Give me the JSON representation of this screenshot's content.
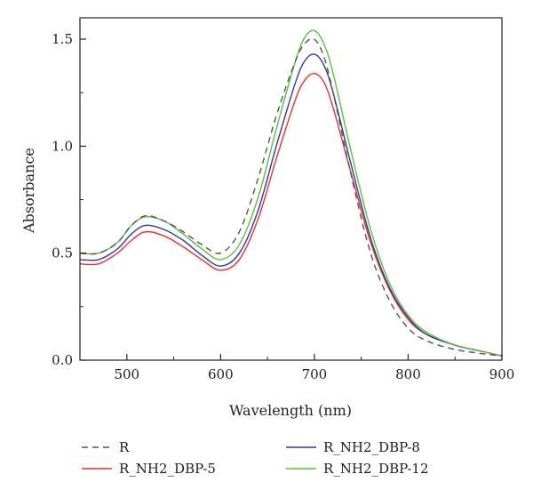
{
  "chart_data": {
    "type": "line",
    "title": "",
    "xlabel": "Wavelength (nm)",
    "ylabel": "Absorbance",
    "xlim": [
      450,
      900
    ],
    "ylim": [
      0,
      1.6
    ],
    "x_ticks": [
      500,
      600,
      700,
      800,
      900
    ],
    "y_ticks": [
      0.0,
      0.5,
      1.0,
      1.5
    ],
    "x_tick_labels": [
      "500",
      "600",
      "700",
      "800",
      "900"
    ],
    "y_tick_labels": [
      "0.0",
      "0.5",
      "1.0",
      "1.5"
    ],
    "grid": false,
    "legend_position": "bottom",
    "series": [
      {
        "name": "R",
        "color": "#555555",
        "dash": true,
        "x": [
          450,
          470,
          490,
          505,
          520,
          540,
          560,
          580,
          600,
          620,
          640,
          660,
          680,
          690,
          700,
          710,
          720,
          740,
          760,
          780,
          800,
          820,
          850,
          880,
          900
        ],
        "y": [
          0.5,
          0.5,
          0.55,
          0.63,
          0.675,
          0.65,
          0.6,
          0.54,
          0.5,
          0.6,
          0.85,
          1.15,
          1.4,
          1.48,
          1.5,
          1.42,
          1.25,
          0.85,
          0.5,
          0.28,
          0.15,
          0.09,
          0.05,
          0.03,
          0.02
        ]
      },
      {
        "name": "R_NH2_DBP-5",
        "color": "#e8312a",
        "dash": false,
        "x": [
          450,
          470,
          490,
          505,
          520,
          540,
          560,
          580,
          600,
          620,
          640,
          660,
          680,
          690,
          700,
          710,
          720,
          740,
          760,
          780,
          800,
          820,
          850,
          880,
          900
        ],
        "y": [
          0.45,
          0.45,
          0.5,
          0.56,
          0.6,
          0.58,
          0.53,
          0.47,
          0.42,
          0.47,
          0.66,
          0.95,
          1.22,
          1.31,
          1.34,
          1.3,
          1.18,
          0.86,
          0.55,
          0.33,
          0.19,
          0.12,
          0.07,
          0.04,
          0.02
        ]
      },
      {
        "name": "R_NH2_DBP-8",
        "color": "#2f3b9a",
        "dash": false,
        "x": [
          450,
          470,
          490,
          505,
          520,
          540,
          560,
          580,
          600,
          620,
          640,
          660,
          680,
          690,
          700,
          710,
          720,
          740,
          760,
          780,
          800,
          820,
          850,
          880,
          900
        ],
        "y": [
          0.47,
          0.47,
          0.52,
          0.59,
          0.63,
          0.61,
          0.56,
          0.49,
          0.44,
          0.5,
          0.7,
          1.01,
          1.3,
          1.4,
          1.43,
          1.38,
          1.25,
          0.9,
          0.57,
          0.34,
          0.2,
          0.12,
          0.07,
          0.04,
          0.02
        ]
      },
      {
        "name": "R_NH2_DBP-12",
        "color": "#5cc13a",
        "dash": false,
        "x": [
          450,
          470,
          490,
          505,
          520,
          540,
          560,
          580,
          600,
          620,
          640,
          660,
          680,
          690,
          700,
          710,
          720,
          740,
          760,
          780,
          800,
          820,
          850,
          880,
          900
        ],
        "y": [
          0.5,
          0.5,
          0.55,
          0.63,
          0.67,
          0.65,
          0.59,
          0.52,
          0.47,
          0.54,
          0.76,
          1.09,
          1.4,
          1.51,
          1.54,
          1.48,
          1.34,
          0.96,
          0.61,
          0.36,
          0.21,
          0.13,
          0.07,
          0.04,
          0.02
        ]
      }
    ]
  }
}
